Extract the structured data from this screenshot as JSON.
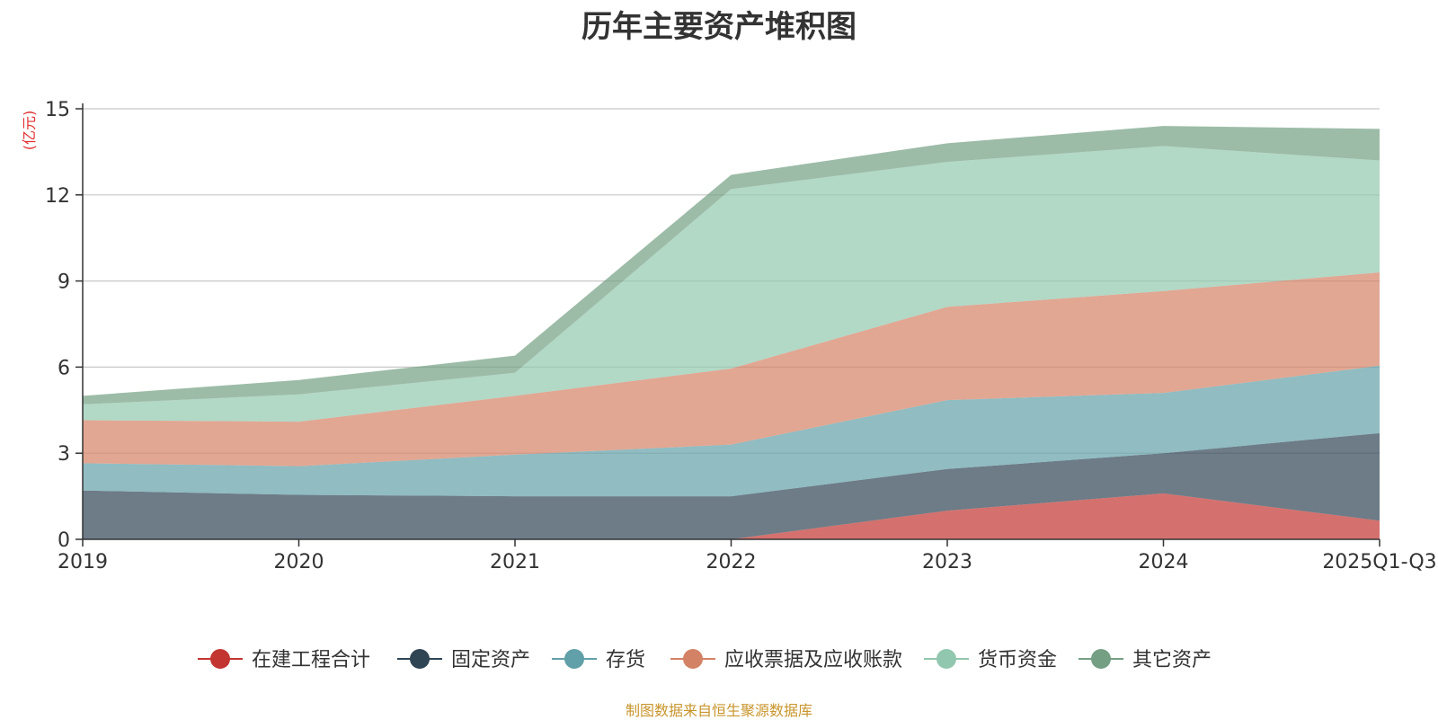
{
  "chart_data": {
    "type": "area",
    "stacked": true,
    "title": "历年主要资产堆积图",
    "unit_label": "(亿元)",
    "xlabel": "",
    "ylabel": "(亿元)",
    "ylim": [
      0,
      15
    ],
    "yticks": [
      0,
      3,
      6,
      9,
      12,
      15
    ],
    "grid": true,
    "legend_position": "bottom",
    "categories": [
      "2019",
      "2020",
      "2021",
      "2022",
      "2023",
      "2024",
      "2025Q1-Q3"
    ],
    "series": [
      {
        "name": "在建工程合计",
        "color": "#c23531",
        "values": [
          0,
          0,
          0,
          0,
          1.0,
          1.6,
          0.65
        ]
      },
      {
        "name": "固定资产",
        "color": "#2f4554",
        "values": [
          1.7,
          1.55,
          1.5,
          1.5,
          1.45,
          1.4,
          3.05
        ]
      },
      {
        "name": "存货",
        "color": "#61a0a8",
        "values": [
          0.95,
          1.0,
          1.45,
          1.8,
          2.4,
          2.1,
          2.35
        ]
      },
      {
        "name": "应收票据及应收账款",
        "color": "#d48265",
        "values": [
          1.5,
          1.55,
          2.05,
          2.65,
          3.25,
          3.55,
          3.25
        ]
      },
      {
        "name": "货币资金",
        "color": "#91c7ae",
        "values": [
          0.55,
          0.95,
          0.8,
          6.25,
          5.05,
          5.05,
          3.9
        ]
      },
      {
        "name": "其它资产",
        "color": "#749f83",
        "values": [
          0.3,
          0.5,
          0.6,
          0.5,
          0.65,
          0.7,
          1.1
        ]
      }
    ]
  },
  "footer": {
    "source_note": "制图数据来自恒生聚源数据库"
  }
}
